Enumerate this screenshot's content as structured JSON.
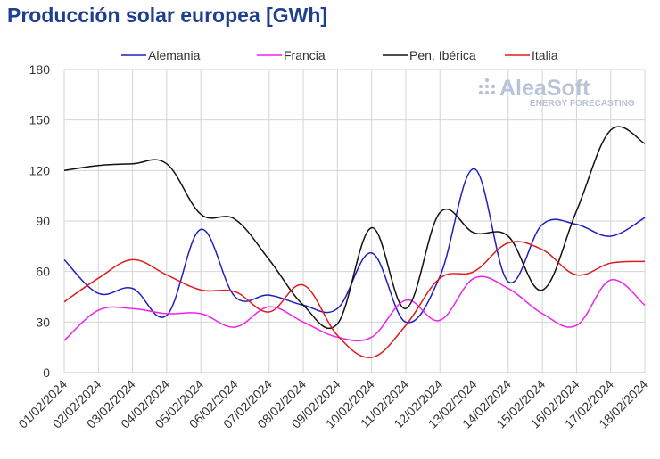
{
  "chart_data": {
    "type": "line",
    "title": "Producción solar europea [GWh]",
    "xlabel": "",
    "ylabel": "",
    "ylim": [
      0,
      180
    ],
    "yticks": [
      0,
      30,
      60,
      90,
      120,
      150,
      180
    ],
    "grid": true,
    "legend_position": "top",
    "categories": [
      "01/02/2024",
      "02/02/2024",
      "03/02/2024",
      "04/02/2024",
      "05/02/2024",
      "06/02/2024",
      "07/02/2024",
      "08/02/2024",
      "09/02/2024",
      "10/02/2024",
      "11/02/2024",
      "12/02/2024",
      "13/02/2024",
      "14/02/2024",
      "15/02/2024",
      "16/02/2024",
      "17/02/2024",
      "18/02/2024"
    ],
    "series": [
      {
        "name": "Alemania",
        "color": "#1f1fbf",
        "values": [
          67,
          47,
          50,
          34,
          85,
          45,
          46,
          40,
          38,
          71,
          30,
          57,
          121,
          54,
          88,
          88,
          81,
          92
        ]
      },
      {
        "name": "Francia",
        "color": "#ee22ee",
        "values": [
          19,
          37,
          38,
          35,
          35,
          27,
          39,
          30,
          21,
          21,
          43,
          31,
          56,
          50,
          35,
          28,
          55,
          40
        ]
      },
      {
        "name": "Pen. Ibérica",
        "color": "#111111",
        "values": [
          120,
          123,
          124,
          124,
          94,
          91,
          67,
          40,
          29,
          86,
          38,
          95,
          83,
          81,
          49,
          96,
          144,
          136
        ]
      },
      {
        "name": "Italia",
        "color": "#e01b1b",
        "values": [
          42,
          56,
          67,
          58,
          49,
          48,
          36,
          52,
          22,
          9,
          28,
          56,
          60,
          77,
          73,
          58,
          65,
          66
        ]
      }
    ]
  },
  "watermark": {
    "name": "AleaSoft",
    "tagline": "ENERGY FORECASTING"
  }
}
